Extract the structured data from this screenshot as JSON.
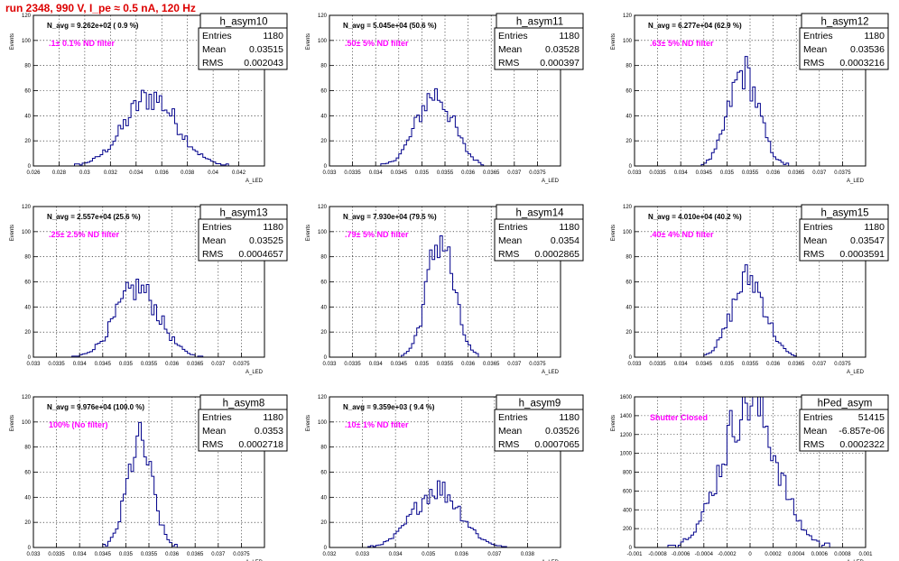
{
  "page": {
    "run_title": "run 2348,   990 V, I_pe ≈ 0.5 nA, 120 Hz"
  },
  "colors": {
    "histogram": "#00008b",
    "filter_text": "#ff00ff",
    "run_title": "#dd0000"
  },
  "chart_data": [
    {
      "type": "bar",
      "name": "h_asym10",
      "stats": {
        "Entries": "1180",
        "Mean": "0.03515",
        "RMS": "0.002043"
      },
      "navg_label": "N_avg = 9.262e+02 ( 0.9 %)",
      "filter_label": ".1± 0.1% ND filter",
      "xlabel": "A_LED",
      "ylabel": "Events",
      "xlim": [
        0.026,
        0.044
      ],
      "ylim": [
        0,
        120
      ],
      "xticks": [
        0.026,
        0.028,
        0.03,
        0.032,
        0.034,
        0.036,
        0.038,
        0.04,
        0.042
      ],
      "xticklabels": [
        "0.026",
        "0.028",
        "0.03",
        "0.032",
        "0.034",
        "0.036",
        "0.038",
        "0.04",
        "0.042"
      ],
      "yticks": [
        0,
        20,
        40,
        60,
        80,
        100,
        120
      ],
      "mean": 0.03515,
      "rms": 0.002043,
      "peak": 55
    },
    {
      "type": "bar",
      "name": "h_asym11",
      "stats": {
        "Entries": "1180",
        "Mean": "0.03528",
        "RMS": "0.000397"
      },
      "navg_label": "N_avg = 5.045e+04 (50.6 %)",
      "filter_label": ".50± 5% ND filter",
      "xlabel": "A_LED",
      "ylabel": "Events",
      "xlim": [
        0.033,
        0.038
      ],
      "ylim": [
        0,
        120
      ],
      "xticks": [
        0.033,
        0.0335,
        0.034,
        0.0345,
        0.035,
        0.0355,
        0.036,
        0.0365,
        0.037,
        0.0375
      ],
      "xticklabels": [
        "0.033",
        "0.0335",
        "0.034",
        "0.0345",
        "0.035",
        "0.0355",
        "0.036",
        "0.0365",
        "0.037",
        "0.0375"
      ],
      "yticks": [
        0,
        20,
        40,
        60,
        80,
        100,
        120
      ],
      "mean": 0.03528,
      "rms": 0.000397,
      "peak": 57
    },
    {
      "type": "bar",
      "name": "h_asym12",
      "stats": {
        "Entries": "1180",
        "Mean": "0.03536",
        "RMS": "0.0003216"
      },
      "navg_label": "N_avg = 6.277e+04 (62.9 %)",
      "filter_label": ".63± 5% ND filter",
      "xlabel": "A_LED",
      "ylabel": "Events",
      "xlim": [
        0.033,
        0.038
      ],
      "ylim": [
        0,
        120
      ],
      "xticks": [
        0.033,
        0.0335,
        0.034,
        0.0345,
        0.035,
        0.0355,
        0.036,
        0.0365,
        0.037,
        0.0375
      ],
      "xticklabels": [
        "0.033",
        "0.0335",
        "0.034",
        "0.0345",
        "0.035",
        "0.0355",
        "0.036",
        "0.0365",
        "0.037",
        "0.0375"
      ],
      "yticks": [
        0,
        20,
        40,
        60,
        80,
        100,
        120
      ],
      "mean": 0.03536,
      "rms": 0.0003216,
      "peak": 75
    },
    {
      "type": "bar",
      "name": "h_asym13",
      "stats": {
        "Entries": "1180",
        "Mean": "0.03525",
        "RMS": "0.0004657"
      },
      "navg_label": "N_avg = 2.557e+04 (25.6 %)",
      "filter_label": ".25± 2.5% ND filter",
      "xlabel": "A_LED",
      "ylabel": "Events",
      "xlim": [
        0.033,
        0.038
      ],
      "ylim": [
        0,
        120
      ],
      "xticks": [
        0.033,
        0.0335,
        0.034,
        0.0345,
        0.035,
        0.0355,
        0.036,
        0.0365,
        0.037,
        0.0375
      ],
      "xticklabels": [
        "0.033",
        "0.0335",
        "0.034",
        "0.0345",
        "0.035",
        "0.0355",
        "0.036",
        "0.0365",
        "0.037",
        "0.0375"
      ],
      "yticks": [
        0,
        20,
        40,
        60,
        80,
        100,
        120
      ],
      "mean": 0.03525,
      "rms": 0.0004657,
      "peak": 55
    },
    {
      "type": "bar",
      "name": "h_asym14",
      "stats": {
        "Entries": "1180",
        "Mean": "0.0354",
        "RMS": "0.0002865"
      },
      "navg_label": "N_avg = 7.930e+04 (79.5 %)",
      "filter_label": ".79± 5% ND filter",
      "xlabel": "A_LED",
      "ylabel": "Events",
      "xlim": [
        0.033,
        0.038
      ],
      "ylim": [
        0,
        120
      ],
      "xticks": [
        0.033,
        0.0335,
        0.034,
        0.0345,
        0.035,
        0.0355,
        0.036,
        0.0365,
        0.037,
        0.0375
      ],
      "xticklabels": [
        "0.033",
        "0.0335",
        "0.034",
        "0.0345",
        "0.035",
        "0.0355",
        "0.036",
        "0.0365",
        "0.037",
        "0.0375"
      ],
      "yticks": [
        0,
        20,
        40,
        60,
        80,
        100,
        120
      ],
      "mean": 0.0354,
      "rms": 0.0002865,
      "peak": 95
    },
    {
      "type": "bar",
      "name": "h_asym15",
      "stats": {
        "Entries": "1180",
        "Mean": "0.03547",
        "RMS": "0.0003591"
      },
      "navg_label": "N_avg = 4.010e+04 (40.2 %)",
      "filter_label": ".40± 4% ND filter",
      "xlabel": "A_LED",
      "ylabel": "Events",
      "xlim": [
        0.033,
        0.038
      ],
      "ylim": [
        0,
        120
      ],
      "xticks": [
        0.033,
        0.0335,
        0.034,
        0.0345,
        0.035,
        0.0355,
        0.036,
        0.0365,
        0.037,
        0.0375
      ],
      "xticklabels": [
        "0.033",
        "0.0335",
        "0.034",
        "0.0345",
        "0.035",
        "0.0355",
        "0.036",
        "0.0365",
        "0.037",
        "0.0375"
      ],
      "yticks": [
        0,
        20,
        40,
        60,
        80,
        100,
        120
      ],
      "mean": 0.03547,
      "rms": 0.0003591,
      "peak": 63
    },
    {
      "type": "bar",
      "name": "h_asym8",
      "stats": {
        "Entries": "1180",
        "Mean": "0.0353",
        "RMS": "0.0002718"
      },
      "navg_label": "N_avg = 9.976e+04 (100.0 %)",
      "filter_label": "100% (No filter)",
      "xlabel": "A_LED",
      "ylabel": "Events",
      "xlim": [
        0.033,
        0.038
      ],
      "ylim": [
        0,
        120
      ],
      "xticks": [
        0.033,
        0.0335,
        0.034,
        0.0345,
        0.035,
        0.0355,
        0.036,
        0.0365,
        0.037,
        0.0375
      ],
      "xticklabels": [
        "0.033",
        "0.0335",
        "0.034",
        "0.0345",
        "0.035",
        "0.0355",
        "0.036",
        "0.0365",
        "0.037",
        "0.0375"
      ],
      "yticks": [
        0,
        20,
        40,
        60,
        80,
        100,
        120
      ],
      "mean": 0.0353,
      "rms": 0.0002718,
      "peak": 83
    },
    {
      "type": "bar",
      "name": "h_asym9",
      "stats": {
        "Entries": "1180",
        "Mean": "0.03526",
        "RMS": "0.0007065"
      },
      "navg_label": "N_avg = 9.359e+03 ( 9.4 %)",
      "filter_label": ".10± 1% ND filter",
      "xlabel": "A_LED",
      "ylabel": "Events",
      "xlim": [
        0.032,
        0.039
      ],
      "ylim": [
        0,
        120
      ],
      "xticks": [
        0.032,
        0.033,
        0.034,
        0.035,
        0.036,
        0.037,
        0.038
      ],
      "xticklabels": [
        "0.032",
        "0.033",
        "0.034",
        "0.035",
        "0.036",
        "0.037",
        "0.038"
      ],
      "yticks": [
        0,
        20,
        40,
        60,
        80,
        100,
        120
      ],
      "mean": 0.03526,
      "rms": 0.0007065,
      "peak": 47
    },
    {
      "type": "bar",
      "name": "hPed_asym",
      "stats": {
        "Entries": "51415",
        "Mean": "-6.857e-06",
        "RMS": "0.0002322"
      },
      "navg_label": "",
      "filter_label": "Shutter Closed",
      "xlabel": "A_LED",
      "ylabel": "Events",
      "xlim": [
        -0.001,
        0.001
      ],
      "ylim": [
        0,
        1600
      ],
      "xticks": [
        -0.001,
        -0.0008,
        -0.0006,
        -0.0004,
        -0.0002,
        0,
        0.0002,
        0.0004,
        0.0006,
        0.0008,
        0.001
      ],
      "xticklabels": [
        "-0.001",
        "-0.0008",
        "-0.0006",
        "-0.0004",
        "-0.0002",
        "0",
        "0.0002",
        "0.0004",
        "0.0006",
        "0.0008",
        "0.001"
      ],
      "yticks": [
        0,
        200,
        400,
        600,
        800,
        1000,
        1200,
        1400,
        1600
      ],
      "mean": -6.857e-06,
      "rms": 0.0002322,
      "peak": 1560
    }
  ]
}
